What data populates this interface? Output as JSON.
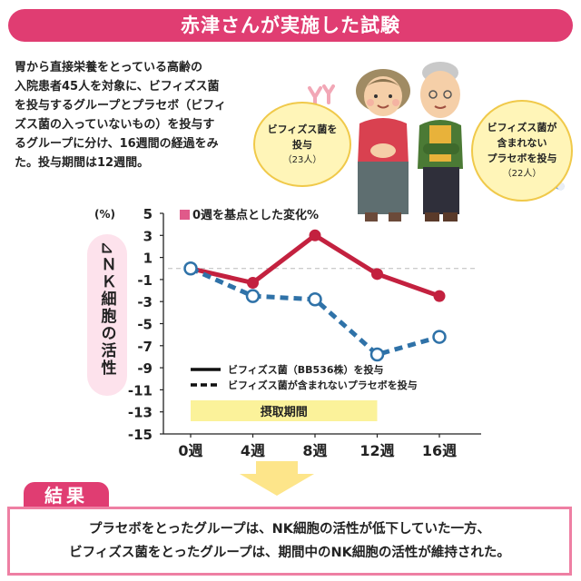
{
  "header": {
    "title": "赤津さんが実施した試験"
  },
  "intro": {
    "lines": [
      "胃から直接栄養をとっている高齢の",
      "入院患者45人を対象に、ビフィズス菌",
      "を投与するグループとプラセボ（ビフィ",
      "ズス菌の入っていないもの）を投与す",
      "るグループに分け、16週間の経過をみ",
      "た。投与期間は12週間。"
    ]
  },
  "groups": {
    "left": {
      "lines": [
        "ビフィズス菌を",
        "投与"
      ],
      "count": "（23人）"
    },
    "right": {
      "lines": [
        "ビフィズス菌が",
        "含まれない",
        "プラセボを投与"
      ],
      "count": "（22人）"
    }
  },
  "colors": {
    "accent": "#e03d72",
    "series_treatment": "#c3213f",
    "series_placebo": "#2f72a8",
    "period_band": "#fbf29a"
  },
  "chart_data": {
    "type": "line",
    "title": "0週を基点とした変化%",
    "ylabel": "⊿ＮＫ細胞の活性",
    "unit": "(%)",
    "categories": [
      "0週",
      "4週",
      "8週",
      "12週",
      "16週"
    ],
    "ylim": [
      -15,
      5
    ],
    "yticks": [
      "5",
      "3",
      "1",
      "-1",
      "-3",
      "-5",
      "-7",
      "-9",
      "-11",
      "-13",
      "-15"
    ],
    "series": [
      {
        "name": "ビフィズス菌（BB536株）を投与",
        "values": [
          0,
          -1.3,
          3,
          -0.5,
          -2.5
        ],
        "style": "solid"
      },
      {
        "name": "ビフィズス菌が含まれないプラセボを投与",
        "values": [
          0,
          -2.5,
          -2.8,
          -7.8,
          -6.2
        ],
        "style": "dashed"
      }
    ],
    "period_label": "摂取期間",
    "period_range": [
      "0週",
      "12週"
    ],
    "legend_placement": "bottom-center"
  },
  "results": {
    "label": "結果",
    "lines": [
      "プラセボをとったグループは、NK細胞の活性が低下していた一方、",
      "ビフィズス菌をとったグループは、期間中のNK細胞の活性が維持された。"
    ]
  }
}
